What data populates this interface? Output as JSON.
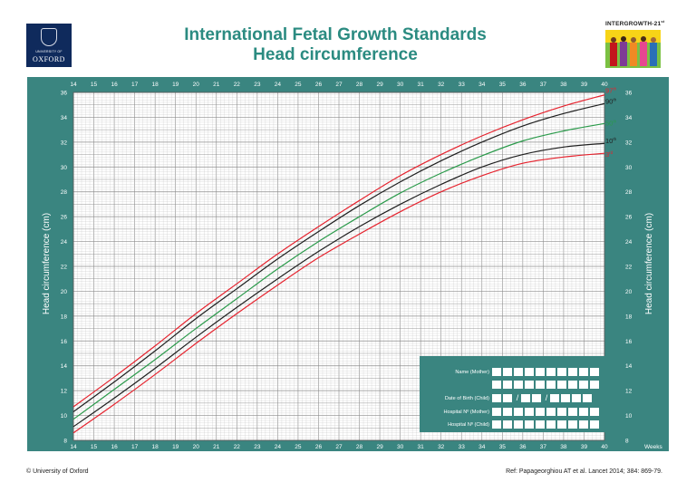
{
  "header": {
    "title_line1": "International Fetal Growth Standards",
    "title_line2": "Head circumference",
    "oxford_logo": {
      "line1": "UNIVERSITY OF",
      "line2": "OXFORD"
    },
    "intergrowth_label": "INTERGROWTH-21st"
  },
  "colors": {
    "panel": "#3a8580",
    "plot_bg": "#ffffff",
    "grid": "#bdbdbd",
    "title": "#2b8b81",
    "red": "#e6232e",
    "black": "#1f1f1f",
    "green": "#2a9a4a"
  },
  "chart_data": {
    "type": "line",
    "title": "Head circumference",
    "xlabel": "Weeks",
    "ylabel": "Head circumference (cm)",
    "xlim": [
      14,
      40
    ],
    "ylim": [
      8,
      36
    ],
    "x_ticks": [
      14,
      15,
      16,
      17,
      18,
      19,
      20,
      21,
      22,
      23,
      24,
      25,
      26,
      27,
      28,
      29,
      30,
      31,
      32,
      33,
      34,
      35,
      36,
      37,
      38,
      39,
      40
    ],
    "y_ticks": [
      8,
      10,
      12,
      14,
      16,
      18,
      20,
      22,
      24,
      26,
      28,
      30,
      32,
      34,
      36
    ],
    "grid": true,
    "x": [
      14,
      16,
      18,
      20,
      22,
      24,
      26,
      28,
      30,
      32,
      34,
      36,
      38,
      40
    ],
    "series": [
      {
        "name": "97th",
        "color": "#e6232e",
        "values": [
          10.7,
          13.1,
          15.6,
          18.2,
          20.6,
          23.0,
          25.2,
          27.3,
          29.3,
          31.0,
          32.5,
          33.8,
          34.9,
          35.8
        ]
      },
      {
        "name": "90th",
        "color": "#1f1f1f",
        "values": [
          10.3,
          12.7,
          15.2,
          17.8,
          20.2,
          22.6,
          24.8,
          26.9,
          28.8,
          30.5,
          32.0,
          33.3,
          34.3,
          35.1
        ]
      },
      {
        "name": "50th",
        "color": "#2a9a4a",
        "values": [
          9.7,
          12.1,
          14.5,
          17.0,
          19.4,
          21.8,
          24.0,
          26.0,
          27.9,
          29.5,
          30.9,
          32.1,
          32.9,
          33.5
        ]
      },
      {
        "name": "10th",
        "color": "#1f1f1f",
        "values": [
          9.1,
          11.4,
          13.8,
          16.3,
          18.7,
          21.0,
          23.2,
          25.2,
          27.0,
          28.6,
          30.0,
          31.0,
          31.6,
          31.9
        ]
      },
      {
        "name": "3rd",
        "color": "#e6232e",
        "values": [
          8.6,
          10.9,
          13.3,
          15.8,
          18.2,
          20.5,
          22.7,
          24.6,
          26.4,
          28.0,
          29.3,
          30.3,
          30.8,
          31.1
        ]
      }
    ],
    "legend_labels": [
      {
        "base": "97",
        "sup": "th"
      },
      {
        "base": "90",
        "sup": "th"
      },
      {
        "base": "50",
        "sup": "th"
      },
      {
        "base": "10",
        "sup": "th"
      },
      {
        "base": "3",
        "sup": "rd"
      }
    ]
  },
  "form": {
    "name_mother": "Name (Mother)",
    "date_of_birth": "Date of Birth (Child)",
    "hospital_mother": "Hospital Nº (Mother)",
    "hospital_child": "Hospital Nº (Child)",
    "date_separator": "/"
  },
  "footer": {
    "copyright": "© University of Oxford",
    "reference": "Ref: Papageorghiou AT et al. Lancet 2014; 384: 869-79."
  }
}
